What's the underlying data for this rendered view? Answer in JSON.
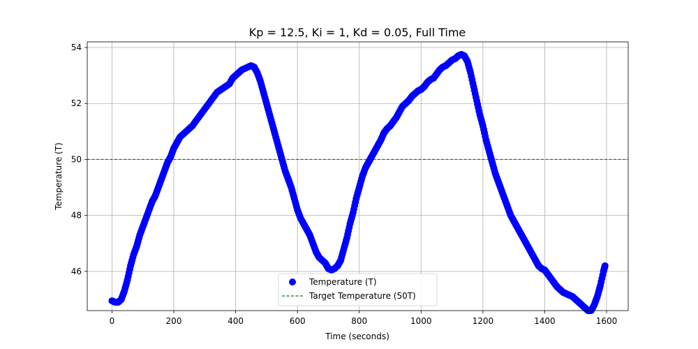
{
  "chart_data": {
    "type": "scatter",
    "title": "Kp = 12.5, Ki = 1, Kd = 0.05, Full Time",
    "xlabel": "Time (seconds)",
    "ylabel": "Temperature (T)",
    "xlim": [
      -80,
      1670
    ],
    "ylim": [
      44.6,
      54.2
    ],
    "xticks": [
      0,
      200,
      400,
      600,
      800,
      1000,
      1200,
      1400,
      1600
    ],
    "yticks": [
      46,
      48,
      50,
      52,
      54
    ],
    "grid": true,
    "legend_position": "lower-center",
    "series": [
      {
        "name": "Temperature (T)",
        "kind": "scatter",
        "color": "#0000ff",
        "points": [
          [
            0,
            44.95
          ],
          [
            10,
            44.9
          ],
          [
            20,
            44.9
          ],
          [
            30,
            45.0
          ],
          [
            40,
            45.3
          ],
          [
            50,
            45.7
          ],
          [
            60,
            46.2
          ],
          [
            70,
            46.6
          ],
          [
            80,
            46.9
          ],
          [
            90,
            47.3
          ],
          [
            100,
            47.6
          ],
          [
            110,
            47.9
          ],
          [
            120,
            48.2
          ],
          [
            130,
            48.5
          ],
          [
            140,
            48.7
          ],
          [
            150,
            49.0
          ],
          [
            160,
            49.3
          ],
          [
            170,
            49.6
          ],
          [
            180,
            49.9
          ],
          [
            190,
            50.1
          ],
          [
            200,
            50.4
          ],
          [
            210,
            50.6
          ],
          [
            220,
            50.8
          ],
          [
            240,
            51.0
          ],
          [
            260,
            51.2
          ],
          [
            280,
            51.5
          ],
          [
            300,
            51.8
          ],
          [
            320,
            52.1
          ],
          [
            340,
            52.4
          ],
          [
            360,
            52.55
          ],
          [
            380,
            52.7
          ],
          [
            390,
            52.9
          ],
          [
            400,
            53.0
          ],
          [
            410,
            53.1
          ],
          [
            420,
            53.2
          ],
          [
            440,
            53.3
          ],
          [
            450,
            53.35
          ],
          [
            460,
            53.3
          ],
          [
            470,
            53.1
          ],
          [
            480,
            52.8
          ],
          [
            490,
            52.4
          ],
          [
            500,
            52.0
          ],
          [
            510,
            51.6
          ],
          [
            520,
            51.2
          ],
          [
            530,
            50.8
          ],
          [
            540,
            50.4
          ],
          [
            550,
            50.0
          ],
          [
            560,
            49.6
          ],
          [
            570,
            49.3
          ],
          [
            580,
            49.0
          ],
          [
            590,
            48.6
          ],
          [
            600,
            48.2
          ],
          [
            610,
            47.9
          ],
          [
            620,
            47.7
          ],
          [
            630,
            47.5
          ],
          [
            640,
            47.3
          ],
          [
            650,
            47.0
          ],
          [
            660,
            46.7
          ],
          [
            670,
            46.5
          ],
          [
            690,
            46.3
          ],
          [
            700,
            46.1
          ],
          [
            710,
            46.05
          ],
          [
            720,
            46.1
          ],
          [
            730,
            46.2
          ],
          [
            740,
            46.4
          ],
          [
            750,
            46.8
          ],
          [
            760,
            47.2
          ],
          [
            770,
            47.7
          ],
          [
            780,
            48.1
          ],
          [
            790,
            48.6
          ],
          [
            800,
            49.0
          ],
          [
            810,
            49.4
          ],
          [
            820,
            49.7
          ],
          [
            830,
            49.9
          ],
          [
            840,
            50.1
          ],
          [
            850,
            50.3
          ],
          [
            860,
            50.5
          ],
          [
            870,
            50.7
          ],
          [
            880,
            50.95
          ],
          [
            890,
            51.1
          ],
          [
            900,
            51.2
          ],
          [
            910,
            51.35
          ],
          [
            920,
            51.5
          ],
          [
            930,
            51.7
          ],
          [
            940,
            51.9
          ],
          [
            950,
            52.0
          ],
          [
            960,
            52.1
          ],
          [
            970,
            52.25
          ],
          [
            980,
            52.35
          ],
          [
            990,
            52.45
          ],
          [
            1000,
            52.5
          ],
          [
            1010,
            52.6
          ],
          [
            1020,
            52.75
          ],
          [
            1030,
            52.85
          ],
          [
            1040,
            52.9
          ],
          [
            1050,
            53.05
          ],
          [
            1060,
            53.2
          ],
          [
            1070,
            53.3
          ],
          [
            1080,
            53.35
          ],
          [
            1090,
            53.45
          ],
          [
            1100,
            53.55
          ],
          [
            1110,
            53.6
          ],
          [
            1120,
            53.7
          ],
          [
            1130,
            53.75
          ],
          [
            1140,
            53.7
          ],
          [
            1150,
            53.5
          ],
          [
            1160,
            53.1
          ],
          [
            1170,
            52.6
          ],
          [
            1180,
            52.1
          ],
          [
            1190,
            51.6
          ],
          [
            1200,
            51.2
          ],
          [
            1210,
            50.7
          ],
          [
            1220,
            50.3
          ],
          [
            1230,
            49.9
          ],
          [
            1240,
            49.5
          ],
          [
            1250,
            49.2
          ],
          [
            1260,
            48.9
          ],
          [
            1270,
            48.6
          ],
          [
            1280,
            48.3
          ],
          [
            1290,
            48.0
          ],
          [
            1300,
            47.8
          ],
          [
            1310,
            47.6
          ],
          [
            1320,
            47.4
          ],
          [
            1330,
            47.2
          ],
          [
            1340,
            47.0
          ],
          [
            1350,
            46.8
          ],
          [
            1360,
            46.6
          ],
          [
            1370,
            46.4
          ],
          [
            1380,
            46.2
          ],
          [
            1390,
            46.1
          ],
          [
            1400,
            46.05
          ],
          [
            1410,
            45.9
          ],
          [
            1420,
            45.75
          ],
          [
            1430,
            45.6
          ],
          [
            1440,
            45.45
          ],
          [
            1450,
            45.35
          ],
          [
            1460,
            45.25
          ],
          [
            1470,
            45.2
          ],
          [
            1480,
            45.15
          ],
          [
            1490,
            45.1
          ],
          [
            1500,
            45.0
          ],
          [
            1510,
            44.9
          ],
          [
            1520,
            44.8
          ],
          [
            1530,
            44.7
          ],
          [
            1540,
            44.6
          ],
          [
            1550,
            44.6
          ],
          [
            1560,
            44.8
          ],
          [
            1570,
            45.1
          ],
          [
            1580,
            45.5
          ],
          [
            1590,
            46.0
          ],
          [
            1595,
            46.2
          ]
        ]
      },
      {
        "name": "Target Temperature (50T)",
        "kind": "hline",
        "y": 50,
        "color": "#008000",
        "style": "dashed"
      }
    ]
  }
}
